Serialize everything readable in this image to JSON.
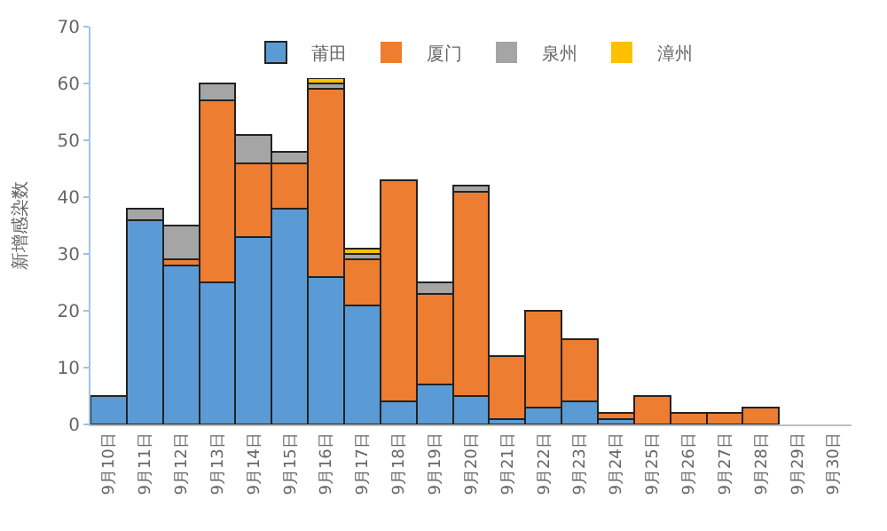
{
  "chart_data": {
    "type": "bar",
    "stacked": true,
    "ylabel": "新增感染数",
    "categories": [
      "9月10日",
      "9月11日",
      "9月12日",
      "9月13日",
      "9月14日",
      "9月15日",
      "9月16日",
      "9月17日",
      "9月18日",
      "9月19日",
      "9月20日",
      "9月21日",
      "9月22日",
      "9月23日",
      "9月24日",
      "9月25日",
      "9月26日",
      "9月27日",
      "9月28日",
      "9月29日",
      "9月30日"
    ],
    "series": [
      {
        "name": "莆田",
        "color": "#5b9bd5",
        "values": [
          5,
          36,
          28,
          25,
          33,
          38,
          26,
          21,
          4,
          7,
          5,
          1,
          3,
          4,
          1,
          0,
          0,
          0,
          0,
          0,
          0
        ]
      },
      {
        "name": "厦门",
        "color": "#ed7d31",
        "values": [
          0,
          0,
          1,
          32,
          13,
          8,
          33,
          8,
          39,
          16,
          36,
          11,
          17,
          11,
          1,
          5,
          2,
          2,
          3,
          0,
          0
        ]
      },
      {
        "name": "泉州",
        "color": "#a5a5a5",
        "values": [
          0,
          2,
          6,
          3,
          5,
          2,
          1,
          1,
          0,
          2,
          1,
          0,
          0,
          0,
          0,
          0,
          0,
          0,
          0,
          0,
          0
        ]
      },
      {
        "name": "漳州",
        "color": "#ffc000",
        "values": [
          0,
          0,
          0,
          0,
          0,
          0,
          1,
          1,
          0,
          0,
          0,
          0,
          0,
          0,
          0,
          0,
          0,
          0,
          0,
          0,
          0
        ]
      }
    ],
    "ylim": [
      0,
      70
    ],
    "yticks": [
      0,
      10,
      20,
      30,
      40,
      50,
      60,
      70
    ],
    "grid": false,
    "legend": "top"
  }
}
